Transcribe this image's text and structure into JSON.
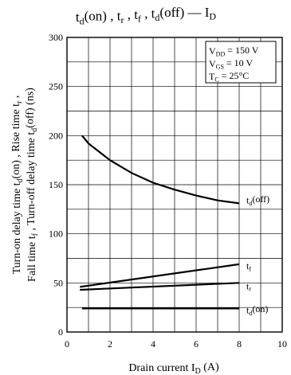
{
  "chart_data": {
    "type": "line",
    "title": "t_d(on) , t_r , t_f , t_d(off) — I_D",
    "xlabel": "Drain current I_D (A)",
    "ylabel_line1": "Turn-on delay time t_d(on) , Rise time t_r ,",
    "ylabel_line2": "Fall time t_f , Turn-off delay time t_d(off) (ns)",
    "xlim": [
      0,
      10
    ],
    "ylim": [
      0,
      300
    ],
    "x_ticks": [
      0,
      2,
      4,
      6,
      8,
      10
    ],
    "y_ticks": [
      0,
      50,
      100,
      150,
      200,
      250,
      300
    ],
    "grid": true,
    "conditions": [
      "V_DD = 150 V",
      "V_GS = 10 V",
      "T_C = 25°C"
    ],
    "series": [
      {
        "name": "t_d(off)",
        "x": [
          0.7,
          1,
          2,
          3,
          4,
          5,
          6,
          7,
          8
        ],
        "y": [
          200,
          192,
          175,
          162,
          152,
          145,
          139,
          134,
          131
        ]
      },
      {
        "name": "t_f",
        "x": [
          0.6,
          8
        ],
        "y": [
          46,
          69
        ]
      },
      {
        "name": "t_r",
        "x": [
          0.6,
          8
        ],
        "y": [
          43,
          50
        ]
      },
      {
        "name": "t_d(on)",
        "x": [
          0.7,
          8
        ],
        "y": [
          24,
          24
        ]
      }
    ]
  }
}
